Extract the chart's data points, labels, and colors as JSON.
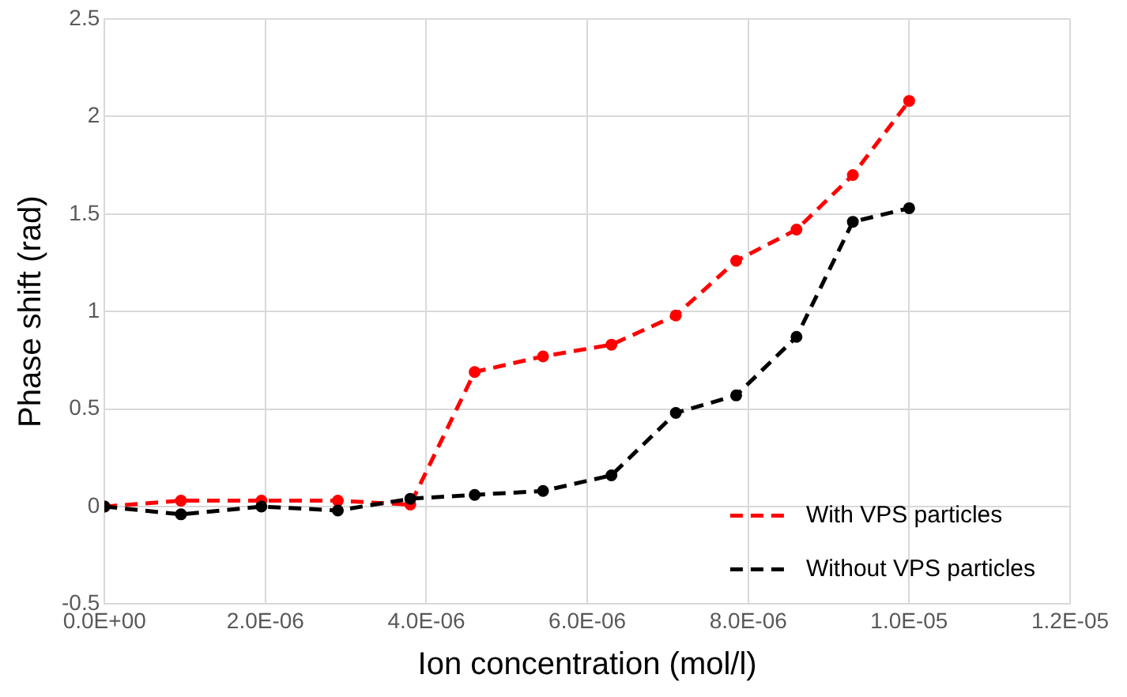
{
  "chart_data": {
    "type": "line",
    "xlabel": "Ion concentration (mol/l)",
    "ylabel": "Phase shift (rad)",
    "xlim": [
      0,
      1.2e-05
    ],
    "xticks": [
      {
        "value": 0,
        "label": "0.0E+00"
      },
      {
        "value": 2e-06,
        "label": "2.0E-06"
      },
      {
        "value": 4e-06,
        "label": "4.0E-06"
      },
      {
        "value": 6e-06,
        "label": "6.0E-06"
      },
      {
        "value": 8e-06,
        "label": "8.0E-06"
      },
      {
        "value": 1e-05,
        "label": "1.0E-05"
      },
      {
        "value": 1.2e-05,
        "label": "1.2E-05"
      }
    ],
    "ylim": [
      -0.5,
      2.5
    ],
    "yticks": [
      -0.5,
      0,
      0.5,
      1,
      1.5,
      2,
      2.5
    ],
    "x": [
      0,
      9.5e-07,
      1.95e-06,
      2.9e-06,
      3.8e-06,
      4.6e-06,
      5.45e-06,
      6.3e-06,
      7.1e-06,
      7.85e-06,
      8.6e-06,
      9.3e-06,
      1e-05
    ],
    "series": [
      {
        "name": "With VPS particles",
        "color": "#ff0000",
        "values": [
          0,
          0.03,
          0.03,
          0.03,
          0.01,
          0.69,
          0.77,
          0.83,
          0.98,
          1.26,
          1.42,
          1.7,
          2.08
        ]
      },
      {
        "name": "Without VPS particles",
        "color": "#000000",
        "values": [
          0,
          -0.04,
          0,
          -0.02,
          0.04,
          0.06,
          0.08,
          0.16,
          0.48,
          0.57,
          0.87,
          1.46,
          1.53
        ]
      }
    ],
    "grid": true,
    "legend": "bottom right",
    "marker": "circle",
    "line_style": "dashed"
  }
}
